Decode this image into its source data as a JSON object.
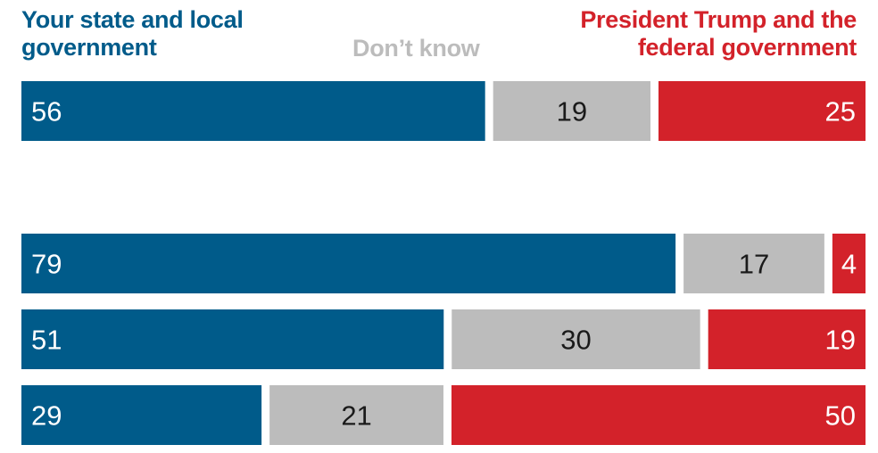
{
  "chart_data": {
    "type": "bar",
    "orientation": "horizontal",
    "stacked": true,
    "grid": false,
    "legend_placement": "top",
    "series": [
      {
        "name": "Your state and local government",
        "color": "#005b8a",
        "label_color": "#ffffff",
        "values": [
          56,
          79,
          51,
          29
        ]
      },
      {
        "name": "Don’t know",
        "color": "#bcbcbc",
        "label_color": "#1a1a1a",
        "values": [
          19,
          17,
          30,
          21
        ]
      },
      {
        "name": "President Trump and the federal government",
        "color": "#d3222a",
        "label_color": "#ffffff",
        "values": [
          25,
          4,
          19,
          50
        ]
      }
    ],
    "xlim": [
      0,
      100
    ]
  },
  "legend": {
    "left_line1": "Your state and local",
    "left_line2": "government",
    "mid": "Don’t know",
    "right_line1": "President Trump and the",
    "right_line2": "federal government"
  }
}
